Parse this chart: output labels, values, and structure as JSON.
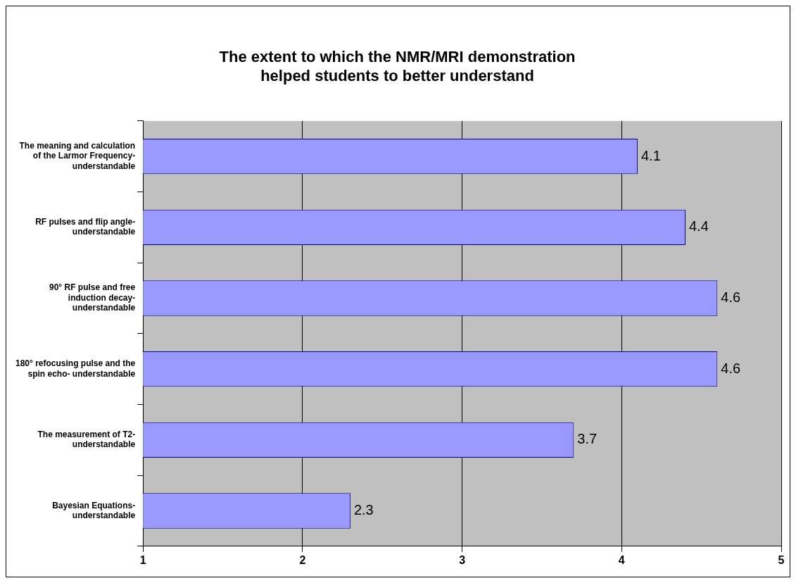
{
  "chart_data": {
    "type": "bar",
    "orientation": "horizontal",
    "title": [
      "The extent to which the NMR/MRI demonstration",
      "helped students to better understand"
    ],
    "categories": [
      "The meaning and calculation of the Larmor Frequency- understandable",
      "RF pulses and flip angle- understandable",
      "90° RF pulse and free induction decay- understandable",
      "180° refocusing pulse and the spin echo- understandable",
      "The measurement of T2- understandable",
      "Bayesian Equations- understandable"
    ],
    "values": [
      4.1,
      4.4,
      4.6,
      4.6,
      3.7,
      2.3
    ],
    "color": "#9999ff",
    "xlim": [
      1,
      5
    ],
    "xticks": [
      1,
      2,
      3,
      4,
      5
    ],
    "grid": "x",
    "legend": false,
    "data_labels": true
  }
}
